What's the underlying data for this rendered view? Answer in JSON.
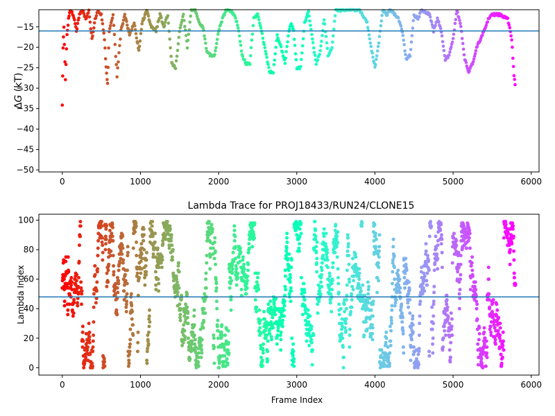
{
  "colors": {
    "hline": "#1f77b4",
    "spine": "#000000",
    "colormap": "rainbow (reversed by frame index: red early, violet late)"
  },
  "chart_data": [
    {
      "type": "scatter",
      "title": "",
      "xlabel": "",
      "ylabel": "ΔG (kT)",
      "ylabel_parts": {
        "delta": "Δ",
        "var": "G",
        "unit": " (kT)"
      },
      "xlim": [
        -300,
        6100
      ],
      "ylim": [
        -50.5,
        -10.8
      ],
      "xticks": [
        0,
        1000,
        2000,
        3000,
        4000,
        5000,
        6000
      ],
      "xtick_labels": [
        "0",
        "1000",
        "2000",
        "3000",
        "4000",
        "5000",
        "6000"
      ],
      "yticks": [
        -50,
        -45,
        -40,
        -35,
        -30,
        -25,
        -20,
        -15
      ],
      "ytick_labels": [
        "−50",
        "−45",
        "−40",
        "−35",
        "−30",
        "−25",
        "−20",
        "−15"
      ],
      "hline_y": -16,
      "color_by": "frame index (rainbow colormap)",
      "trace_keypoints": [
        [
          0,
          -34
        ],
        [
          10,
          -20
        ],
        [
          20,
          -15
        ],
        [
          40,
          -28
        ],
        [
          60,
          -17
        ],
        [
          80,
          -13
        ],
        [
          100,
          -11
        ],
        [
          140,
          -12
        ],
        [
          180,
          -16
        ],
        [
          220,
          -12
        ],
        [
          260,
          -11
        ],
        [
          300,
          -13
        ],
        [
          340,
          -11
        ],
        [
          380,
          -18
        ],
        [
          420,
          -13
        ],
        [
          460,
          -11
        ],
        [
          500,
          -12
        ],
        [
          540,
          -18
        ],
        [
          560,
          -25
        ],
        [
          580,
          -29
        ],
        [
          600,
          -16
        ],
        [
          650,
          -12
        ],
        [
          700,
          -27
        ],
        [
          750,
          -16
        ],
        [
          800,
          -12
        ],
        [
          860,
          -17
        ],
        [
          920,
          -14
        ],
        [
          980,
          -21
        ],
        [
          1020,
          -14
        ],
        [
          1080,
          -11
        ],
        [
          1140,
          -15
        ],
        [
          1200,
          -16
        ],
        [
          1250,
          -12
        ],
        [
          1300,
          -15
        ],
        [
          1350,
          -12
        ],
        [
          1400,
          -24
        ],
        [
          1450,
          -25
        ],
        [
          1500,
          -16
        ],
        [
          1550,
          -12
        ],
        [
          1600,
          -20
        ],
        [
          1650,
          -11
        ],
        [
          1700,
          -10.8
        ],
        [
          1750,
          -14
        ],
        [
          1800,
          -15
        ],
        [
          1850,
          -21
        ],
        [
          1900,
          -22
        ],
        [
          1950,
          -22
        ],
        [
          2000,
          -16
        ],
        [
          2050,
          -13
        ],
        [
          2100,
          -10.8
        ],
        [
          2150,
          -11
        ],
        [
          2200,
          -12
        ],
        [
          2250,
          -15
        ],
        [
          2300,
          -22
        ],
        [
          2350,
          -24
        ],
        [
          2400,
          -24
        ],
        [
          2450,
          -13
        ],
        [
          2500,
          -12
        ],
        [
          2550,
          -16
        ],
        [
          2600,
          -21
        ],
        [
          2650,
          -26
        ],
        [
          2700,
          -26
        ],
        [
          2750,
          -17
        ],
        [
          2800,
          -20
        ],
        [
          2850,
          -24
        ],
        [
          2900,
          -16
        ],
        [
          2930,
          -14
        ],
        [
          2960,
          -16
        ],
        [
          3000,
          -25
        ],
        [
          3050,
          -25
        ],
        [
          3100,
          -14
        ],
        [
          3150,
          -11
        ],
        [
          3200,
          -18
        ],
        [
          3250,
          -24
        ],
        [
          3300,
          -21
        ],
        [
          3350,
          -13
        ],
        [
          3400,
          -22
        ],
        [
          3450,
          -20
        ],
        [
          3500,
          -10.8
        ],
        [
          3550,
          -11
        ],
        [
          3600,
          -10.8
        ],
        [
          3700,
          -10.8
        ],
        [
          3800,
          -10.8
        ],
        [
          3900,
          -14
        ],
        [
          3950,
          -20
        ],
        [
          4000,
          -25
        ],
        [
          4050,
          -19
        ],
        [
          4100,
          -11
        ],
        [
          4150,
          -12
        ],
        [
          4200,
          -10.8
        ],
        [
          4300,
          -13
        ],
        [
          4350,
          -16
        ],
        [
          4400,
          -23
        ],
        [
          4450,
          -22
        ],
        [
          4500,
          -12
        ],
        [
          4550,
          -13
        ],
        [
          4600,
          -10.8
        ],
        [
          4700,
          -12
        ],
        [
          4750,
          -16
        ],
        [
          4800,
          -13
        ],
        [
          4850,
          -16
        ],
        [
          4900,
          -23
        ],
        [
          4950,
          -22
        ],
        [
          5000,
          -18
        ],
        [
          5050,
          -10.8
        ],
        [
          5100,
          -15
        ],
        [
          5150,
          -23
        ],
        [
          5200,
          -26
        ],
        [
          5250,
          -24
        ],
        [
          5300,
          -20
        ],
        [
          5350,
          -18
        ],
        [
          5400,
          -16
        ],
        [
          5450,
          -13
        ],
        [
          5500,
          -12
        ],
        [
          5600,
          -12
        ],
        [
          5700,
          -13
        ],
        [
          5750,
          -18
        ],
        [
          5780,
          -27
        ],
        [
          5800,
          -30
        ]
      ]
    },
    {
      "type": "scatter",
      "title": "Lambda Trace for PROJ18433/RUN24/CLONE15",
      "xlabel": "Frame Index",
      "ylabel": "Lambda Index",
      "xlim": [
        -300,
        6100
      ],
      "ylim": [
        -5,
        104
      ],
      "xticks": [
        0,
        1000,
        2000,
        3000,
        4000,
        5000,
        6000
      ],
      "xtick_labels": [
        "0",
        "1000",
        "2000",
        "3000",
        "4000",
        "5000",
        "6000"
      ],
      "yticks": [
        0,
        20,
        40,
        60,
        80,
        100
      ],
      "ytick_labels": [
        "0",
        "20",
        "40",
        "60",
        "80",
        "100"
      ],
      "hline_y": 48,
      "color_by": "frame index (rainbow colormap)",
      "n_frames": 5800,
      "lambda_range": [
        0,
        99
      ],
      "dense_high_region_frames": [
        5650,
        5800
      ]
    }
  ]
}
